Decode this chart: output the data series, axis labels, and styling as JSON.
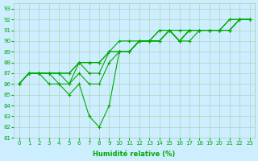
{
  "xlabel": "Humidité relative (%)",
  "background_color": "#cceeff",
  "grid_color": "#aaccaa",
  "line_color": "#00aa00",
  "marker": "+",
  "xlim": [
    -0.5,
    23.5
  ],
  "ylim": [
    81,
    93.5
  ],
  "yticks": [
    81,
    82,
    83,
    84,
    85,
    86,
    87,
    88,
    89,
    90,
    91,
    92,
    93
  ],
  "xticks": [
    0,
    1,
    2,
    3,
    4,
    5,
    6,
    7,
    8,
    9,
    10,
    11,
    12,
    13,
    14,
    15,
    16,
    17,
    18,
    19,
    20,
    21,
    22,
    23
  ],
  "series": [
    [
      86,
      87,
      87,
      86,
      86,
      85,
      86,
      83,
      82,
      84,
      89,
      89,
      90,
      90,
      90,
      91,
      90,
      90,
      91,
      91,
      91,
      91,
      92,
      92
    ],
    [
      86,
      87,
      87,
      87,
      86,
      86,
      87,
      86,
      86,
      88,
      89,
      89,
      90,
      90,
      90,
      91,
      90,
      91,
      91,
      91,
      91,
      91,
      92,
      92
    ],
    [
      86,
      87,
      87,
      87,
      87,
      86,
      88,
      87,
      87,
      89,
      89,
      89,
      90,
      90,
      90,
      91,
      90,
      91,
      91,
      91,
      91,
      91,
      92,
      92
    ],
    [
      86,
      87,
      87,
      87,
      87,
      87,
      88,
      88,
      88,
      89,
      89,
      89,
      90,
      90,
      91,
      91,
      90,
      91,
      91,
      91,
      91,
      92,
      92,
      92
    ],
    [
      86,
      87,
      87,
      87,
      87,
      87,
      88,
      88,
      88,
      89,
      90,
      90,
      90,
      90,
      91,
      91,
      91,
      91,
      91,
      91,
      91,
      92,
      92,
      92
    ]
  ]
}
